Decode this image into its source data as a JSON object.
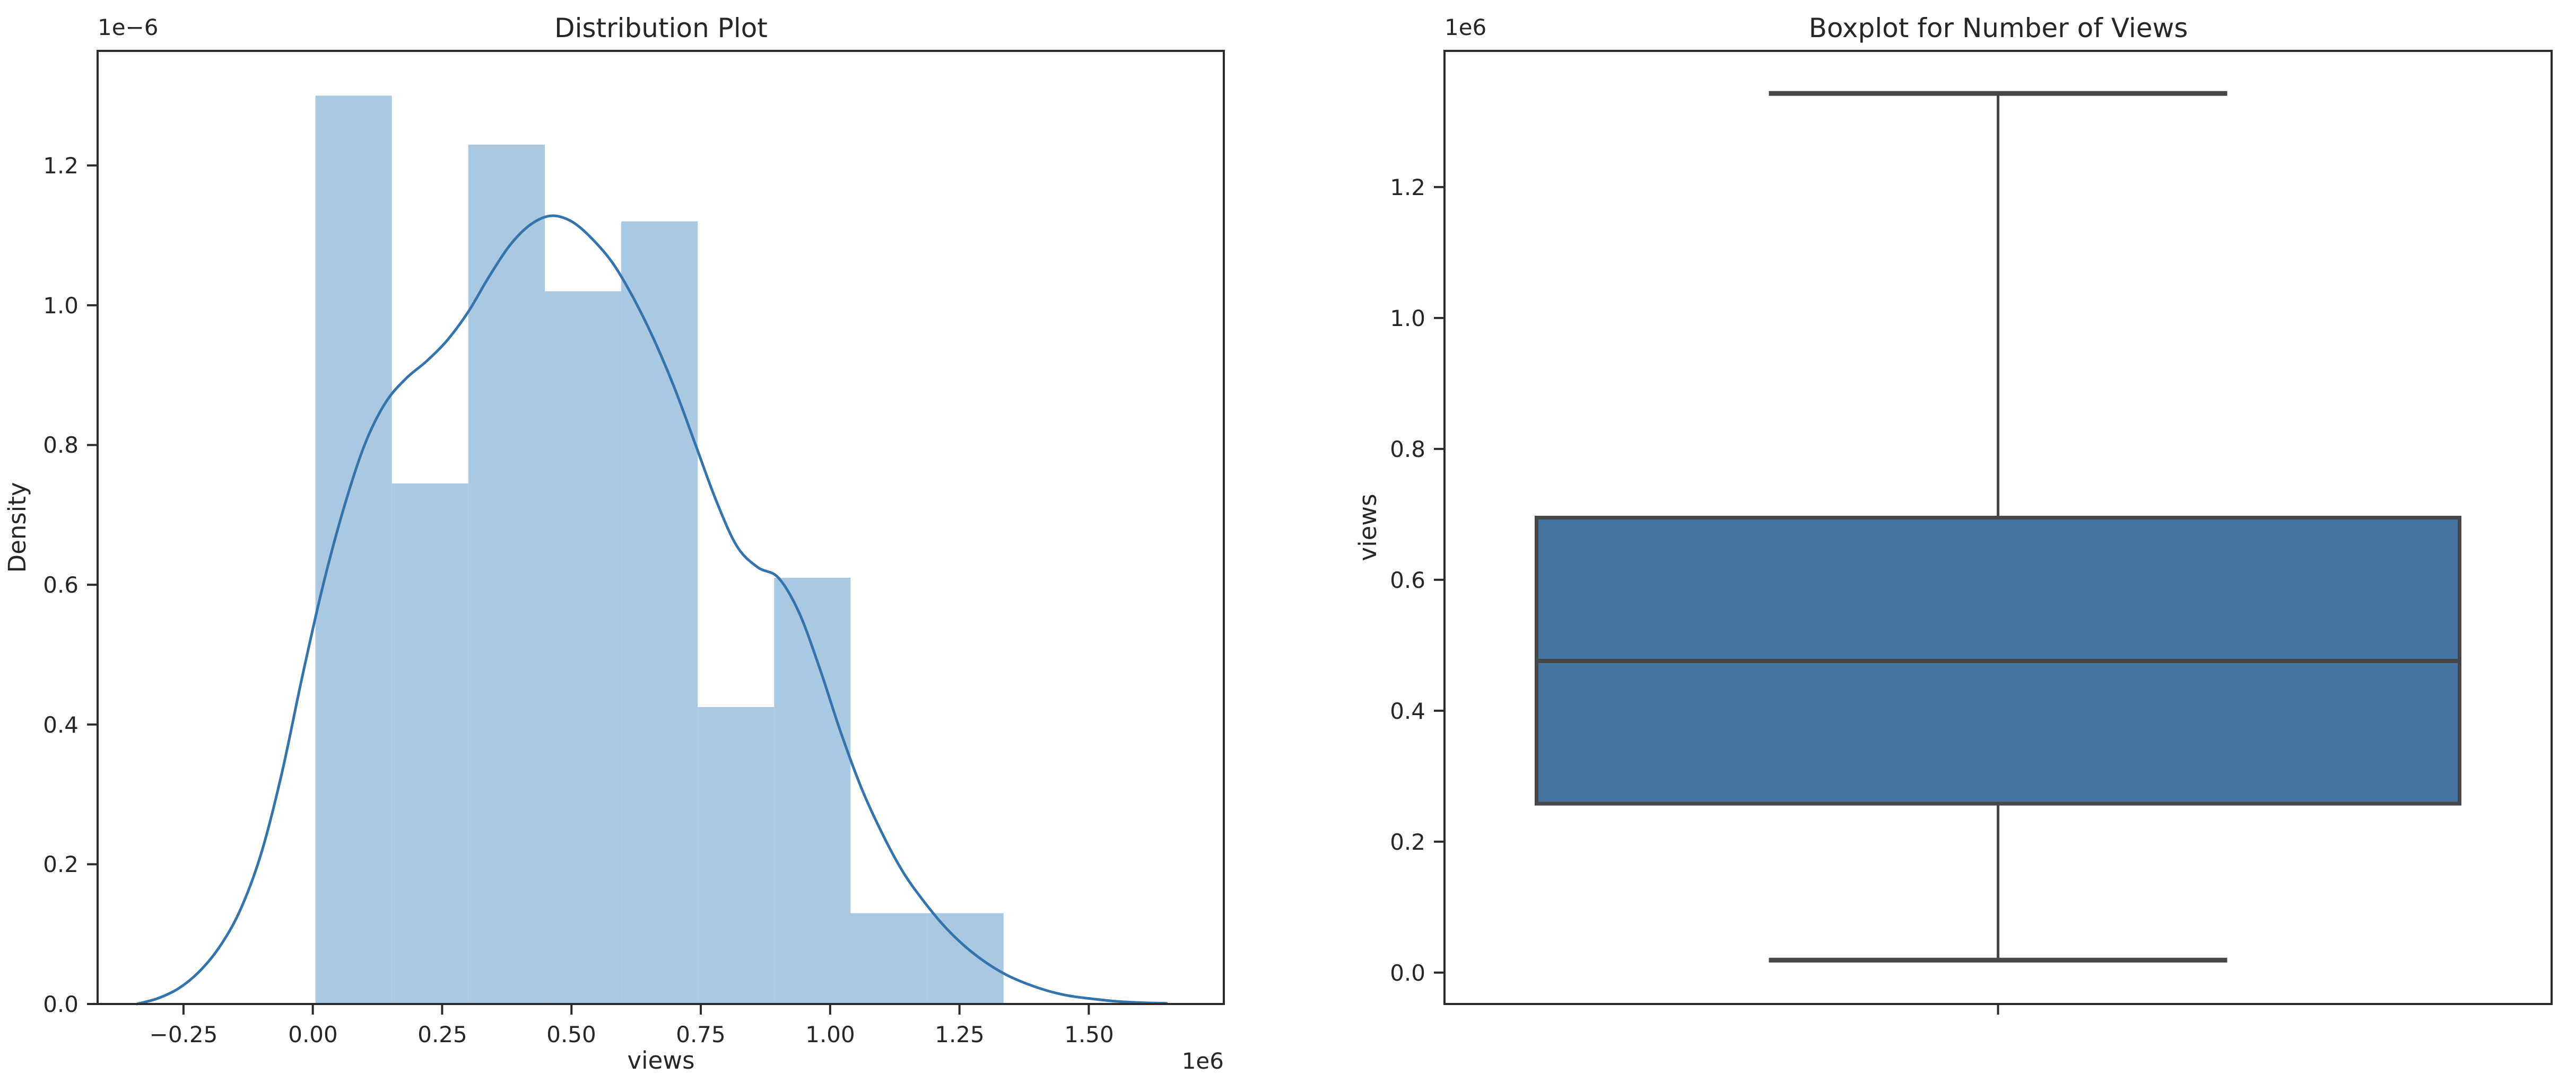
{
  "figure": {
    "background": "#ffffff"
  },
  "palette": {
    "hist_fill": "#a9c8e1",
    "kde_line": "#3474ad",
    "box_fill": "#44739e",
    "box_edge": "#474747",
    "spine": "#2b2b2b",
    "text": "#262626"
  },
  "chart_data": [
    {
      "id": "distribution",
      "type": "histogram+kde",
      "title": "Distribution Plot",
      "xlabel": "views",
      "ylabel": "Density",
      "x_offset_text": "1e6",
      "y_offset_text": "1e−6",
      "x_units": "views (×1e6)",
      "y_units": "density (×1e−6)",
      "xlim": [
        -0.416,
        1.761
      ],
      "ylim": [
        0,
        1.364
      ],
      "grid": false,
      "legend": null,
      "xticks": {
        "values": [
          -0.25,
          0.0,
          0.25,
          0.5,
          0.75,
          1.0,
          1.25,
          1.5
        ],
        "labels": [
          "−0.25",
          "0.00",
          "0.25",
          "0.50",
          "0.75",
          "1.00",
          "1.25",
          "1.50"
        ]
      },
      "yticks": {
        "values": [
          0.0,
          0.2,
          0.4,
          0.6,
          0.8,
          1.0,
          1.2
        ],
        "labels": [
          "0.0",
          "0.2",
          "0.4",
          "0.6",
          "0.8",
          "1.0",
          "1.2"
        ]
      },
      "histogram": {
        "bin_start": 0.005,
        "bin_width": 0.1478,
        "densities": [
          1.3,
          0.745,
          1.23,
          1.02,
          1.12,
          0.425,
          0.61,
          0.13,
          0.13
        ]
      },
      "kde": {
        "x": [
          -0.34,
          -0.3,
          -0.26,
          -0.22,
          -0.18,
          -0.14,
          -0.1,
          -0.06,
          -0.02,
          0.02,
          0.06,
          0.1,
          0.14,
          0.18,
          0.22,
          0.26,
          0.3,
          0.34,
          0.38,
          0.42,
          0.46,
          0.5,
          0.54,
          0.58,
          0.62,
          0.66,
          0.7,
          0.74,
          0.78,
          0.82,
          0.86,
          0.9,
          0.94,
          0.98,
          1.02,
          1.06,
          1.1,
          1.14,
          1.18,
          1.22,
          1.26,
          1.3,
          1.34,
          1.38,
          1.42,
          1.46,
          1.5,
          1.55,
          1.6,
          1.65
        ],
        "y": [
          0.0,
          0.008,
          0.022,
          0.046,
          0.082,
          0.135,
          0.215,
          0.33,
          0.47,
          0.6,
          0.71,
          0.8,
          0.86,
          0.895,
          0.92,
          0.95,
          0.99,
          1.04,
          1.085,
          1.115,
          1.128,
          1.12,
          1.095,
          1.06,
          1.01,
          0.95,
          0.88,
          0.8,
          0.72,
          0.655,
          0.625,
          0.61,
          0.56,
          0.48,
          0.39,
          0.31,
          0.245,
          0.19,
          0.148,
          0.112,
          0.083,
          0.06,
          0.042,
          0.029,
          0.019,
          0.012,
          0.008,
          0.004,
          0.002,
          0.001
        ]
      }
    },
    {
      "id": "boxplot",
      "type": "box",
      "title": "Boxplot for Number of Views",
      "ylabel": "views",
      "y_offset_text": "1e6",
      "y_units": "views (×1e6)",
      "ylim": [
        -0.048,
        1.408
      ],
      "grid": false,
      "yticks": {
        "values": [
          0.0,
          0.2,
          0.4,
          0.6,
          0.8,
          1.0,
          1.2
        ],
        "labels": [
          "0.0",
          "0.2",
          "0.4",
          "0.6",
          "0.8",
          "1.0",
          "1.2"
        ]
      },
      "stats": {
        "whisker_low": 0.019,
        "q1": 0.258,
        "median": 0.476,
        "q3": 0.695,
        "whisker_high": 1.343
      }
    }
  ]
}
